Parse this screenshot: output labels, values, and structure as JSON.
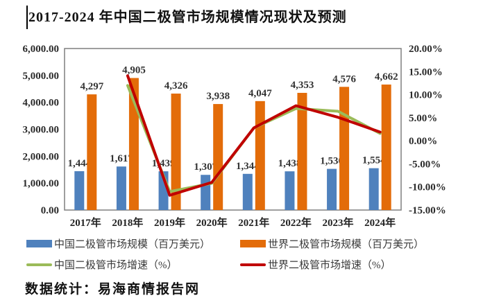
{
  "title": "2017-2024 年中国二极管市场规模情况现状及预测",
  "source": "数据统计：易海商情报告网",
  "colors": {
    "china_bar": "#4F81BD",
    "world_bar": "#E36C09",
    "china_line": "#9BBB59",
    "world_line": "#C00000",
    "plot_border": "#7F7F7F",
    "tick_text": "#2b2b2b",
    "data_label_text": "#333333"
  },
  "axes": {
    "left_ticks": [
      "6,000.00",
      "5,000.00",
      "4,000.00",
      "3,000.00",
      "2,000.00",
      "1,000.00",
      "0.00"
    ],
    "right_ticks": [
      "20.00%",
      "15.00%",
      "10.00%",
      "5.00%",
      "0.00%",
      "-5.00%",
      "-10.00%",
      "-15.00%"
    ]
  },
  "chart_data": {
    "type": "bar+line",
    "title": "2017-2024 年中国二极管市场规模情况现状及预测",
    "categories": [
      "2017年",
      "2018年",
      "2019年",
      "2020年",
      "2021年",
      "2022年",
      "2023年",
      "2024年"
    ],
    "ylim_left": [
      0,
      6000
    ],
    "ylim_right": [
      -15,
      20
    ],
    "grid": false,
    "legend_position": "bottom",
    "series": [
      {
        "name": "中国二极管市场规模（百万美元）",
        "kind": "bar",
        "axis": "left",
        "color": "#4F81BD",
        "values": [
          1444,
          1617,
          1439,
          1307,
          1344,
          1438,
          1530,
          1554
        ],
        "labels": [
          "1,444",
          "1,617",
          "1,439",
          "1,307",
          "1,344",
          "1,438",
          "1,530",
          "1,554"
        ]
      },
      {
        "name": "世界二极管市场规模（百万美元）",
        "kind": "bar",
        "axis": "left",
        "color": "#E36C09",
        "values": [
          4297,
          4905,
          4326,
          3938,
          4047,
          4353,
          4576,
          4662
        ],
        "labels": [
          "4,297",
          "4,905",
          "4,326",
          "3,938",
          "4,047",
          "4,353",
          "4,576",
          "4,662"
        ]
      },
      {
        "name": "中国二极管市场增速（%）",
        "kind": "line",
        "axis": "right",
        "color": "#9BBB59",
        "values": [
          null,
          12.0,
          -11.0,
          -9.2,
          2.8,
          7.0,
          6.4,
          1.6
        ]
      },
      {
        "name": "世界二极管市场增速（%）",
        "kind": "line",
        "axis": "right",
        "color": "#C00000",
        "values": [
          null,
          14.1,
          -11.8,
          -9.0,
          2.8,
          7.6,
          5.1,
          1.9
        ]
      }
    ]
  }
}
